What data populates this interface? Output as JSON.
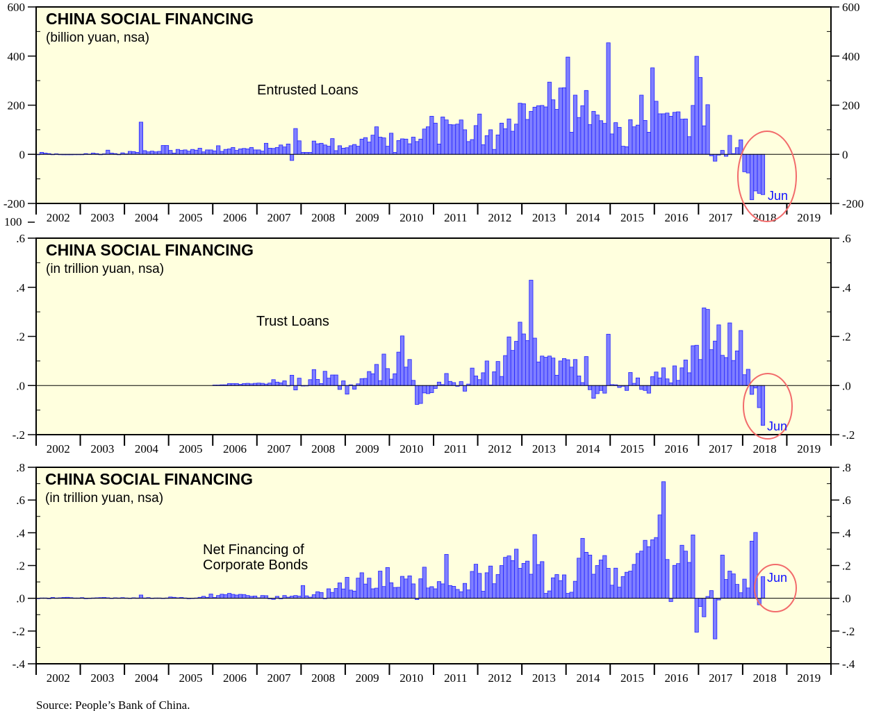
{
  "source": "Source: People’s Bank of China.",
  "stray_axis_label": "100",
  "colors": {
    "background": "#ffffde",
    "bar_fill": "#7f7fff",
    "bar_stroke": "#2222ff",
    "annotation_circle": "#f26b6b",
    "annotation_text": "#1010ff"
  },
  "chart_data": [
    {
      "type": "bar",
      "title": "CHINA SOCIAL FINANCING",
      "subtitle": "(billion yuan, nsa)",
      "series_label": [
        "Entrusted Loans"
      ],
      "frequency": "monthly",
      "start": "2002-01",
      "end": "2018-06",
      "annotation": "Jun",
      "ylim": [
        -200,
        600
      ],
      "yticks": [
        600,
        400,
        200,
        0,
        -200
      ],
      "ytick_labels": [
        "600",
        "400",
        "200",
        "0",
        "-200"
      ],
      "xtick_labels": [
        "2002",
        "2003",
        "2004",
        "2005",
        "2006",
        "2007",
        "2008",
        "2009",
        "2010",
        "2011",
        "2012",
        "2013",
        "2014",
        "2015",
        "2016",
        "2017",
        "2018",
        "2019"
      ],
      "grid": false,
      "values": [
        0,
        8,
        5,
        3,
        0,
        2,
        0,
        -2,
        -2,
        -2,
        0,
        -1,
        0,
        3,
        1,
        5,
        3,
        0,
        2,
        17,
        5,
        3,
        0,
        6,
        2,
        12,
        11,
        8,
        131,
        15,
        10,
        13,
        10,
        12,
        36,
        36,
        16,
        5,
        20,
        16,
        18,
        13,
        20,
        17,
        25,
        10,
        18,
        18,
        14,
        35,
        12,
        20,
        22,
        28,
        16,
        22,
        24,
        22,
        28,
        18,
        18,
        13,
        45,
        25,
        24,
        28,
        38,
        30,
        42,
        -25,
        105,
        55,
        8,
        8,
        8,
        54,
        43,
        45,
        38,
        33,
        64,
        15,
        35,
        25,
        27,
        35,
        40,
        33,
        62,
        68,
        50,
        78,
        112,
        70,
        67,
        33,
        86,
        8,
        56,
        63,
        62,
        43,
        70,
        52,
        62,
        103,
        112,
        155,
        127,
        42,
        152,
        140,
        121,
        120,
        123,
        140,
        100,
        52,
        60,
        117,
        164,
        39,
        76,
        100,
        20,
        79,
        127,
        104,
        144,
        94,
        123,
        208,
        206,
        142,
        175,
        192,
        198,
        199,
        193,
        294,
        222,
        183,
        270,
        271,
        396,
        90,
        241,
        150,
        198,
        260,
        121,
        175,
        160,
        137,
        126,
        454,
        83,
        129,
        110,
        33,
        31,
        141,
        112,
        119,
        241,
        138,
        90,
        352,
        216,
        165,
        165,
        168,
        155,
        171,
        173,
        143,
        144,
        72,
        199,
        399,
        313,
        116,
        202,
        -6,
        -28,
        -3,
        16,
        -8,
        77,
        3,
        27,
        59,
        -71,
        -76,
        -185,
        -149,
        -159,
        -164
      ]
    },
    {
      "type": "bar",
      "title": "CHINA SOCIAL FINANCING",
      "subtitle": "(in trillion yuan, nsa)",
      "series_label": [
        "Trust Loans"
      ],
      "frequency": "monthly",
      "start": "2002-01",
      "end": "2018-06",
      "annotation": "Jun",
      "ylim": [
        -0.2,
        0.6
      ],
      "yticks": [
        0.6,
        0.4,
        0.2,
        0.0,
        -0.2
      ],
      "ytick_labels": [
        ".6",
        ".4",
        ".2",
        ".0",
        "-.2"
      ],
      "xtick_labels": [
        "2002",
        "2003",
        "2004",
        "2005",
        "2006",
        "2007",
        "2008",
        "2009",
        "2010",
        "2011",
        "2012",
        "2013",
        "2014",
        "2015",
        "2016",
        "2017",
        "2018",
        "2019"
      ],
      "grid": false,
      "values": [
        null,
        null,
        null,
        null,
        null,
        null,
        null,
        null,
        null,
        null,
        null,
        null,
        null,
        null,
        null,
        null,
        null,
        null,
        null,
        null,
        null,
        null,
        null,
        null,
        null,
        null,
        null,
        null,
        null,
        null,
        null,
        null,
        null,
        null,
        null,
        null,
        null,
        null,
        null,
        null,
        null,
        null,
        null,
        null,
        null,
        null,
        null,
        null,
        0.002,
        0.002,
        0.003,
        0.003,
        0.008,
        0.008,
        0.008,
        0.005,
        0.008,
        0.009,
        0.007,
        0.009,
        0.01,
        0.009,
        0.006,
        0.01,
        0.024,
        0.014,
        0.011,
        0.019,
        0,
        0.042,
        -0.018,
        0.03,
        -0.002,
        0,
        0.024,
        0.065,
        0.025,
        0.008,
        0.058,
        0.03,
        0.043,
        0.043,
        -0.016,
        0.019,
        -0.035,
        0.003,
        -0.015,
        0.007,
        0.028,
        0.029,
        0.057,
        0.048,
        0.086,
        0.02,
        0.128,
        0.069,
        0.026,
        0.048,
        0.136,
        0.202,
        0.075,
        0.106,
        0.021,
        -0.077,
        -0.073,
        -0.03,
        -0.033,
        -0.029,
        -0.012,
        0.014,
        0.004,
        0.049,
        0.017,
        0.012,
        -0.003,
        0.016,
        -0.023,
        0.006,
        0.071,
        0.039,
        0.024,
        0.052,
        0.1,
        0.002,
        0.056,
        0.098,
        0.037,
        0.122,
        0.198,
        0.143,
        0.18,
        0.258,
        0.21,
        0.183,
        0.429,
        0.193,
        0.096,
        0.12,
        0.115,
        0.12,
        0.112,
        0.042,
        0.1,
        0.11,
        0.105,
        0.075,
        0.106,
        0.039,
        0.012,
        0.118,
        -0.017,
        -0.052,
        -0.033,
        -0.02,
        -0.031,
        0.209,
        0.004,
        0.003,
        -0.008,
        -0.003,
        -0.02,
        0.053,
        0.009,
        0.031,
        -0.016,
        -0.02,
        -0.031,
        0.036,
        0.055,
        0.031,
        0.072,
        0.027,
        0.011,
        0.08,
        0.021,
        0.072,
        0.104,
        0.052,
        0.162,
        0.164,
        0.106,
        0.316,
        0.31,
        0.146,
        0.181,
        0.247,
        0.123,
        0.114,
        0.255,
        0.102,
        0.141,
        0.224,
        0.044,
        0.066,
        -0.036,
        -0.01,
        -0.09,
        -0.162
      ]
    },
    {
      "type": "bar",
      "title": "CHINA SOCIAL FINANCING",
      "subtitle": "(in trillion yuan, nsa)",
      "series_label": [
        "Net Financing of",
        "Corporate Bonds"
      ],
      "frequency": "monthly",
      "start": "2002-01",
      "end": "2018-06",
      "annotation": "Jun",
      "ylim": [
        -0.4,
        0.8
      ],
      "yticks": [
        0.8,
        0.6,
        0.4,
        0.2,
        0.0,
        -0.2,
        -0.4
      ],
      "ytick_labels": [
        ".8",
        ".6",
        ".4",
        ".2",
        ".0",
        "-.2",
        "-.4"
      ],
      "xtick_labels": [
        "2002",
        "2003",
        "2004",
        "2005",
        "2006",
        "2007",
        "2008",
        "2009",
        "2010",
        "2011",
        "2012",
        "2013",
        "2014",
        "2015",
        "2016",
        "2017",
        "2018",
        "2019"
      ],
      "grid": false,
      "values": [
        0,
        0.002,
        0.002,
        0,
        0.005,
        0.002,
        0.003,
        0.005,
        0.006,
        0.004,
        0.002,
        0.002,
        0.004,
        0,
        0.001,
        0.002,
        0.003,
        0.004,
        0.005,
        0.003,
        0.001,
        0.003,
        0.002,
        0.004,
        0.002,
        0.001,
        0.003,
        0.002,
        0.02,
        0.002,
        0.004,
        0.001,
        0.002,
        0.002,
        0.001,
        0.002,
        0.008,
        0.006,
        0.003,
        0.005,
        0.002,
        0,
        0.001,
        0.002,
        0.006,
        0.012,
        0.006,
        0.026,
        0.005,
        0.017,
        0.025,
        0.022,
        0.03,
        0.024,
        0.02,
        0.024,
        0.023,
        0.017,
        0.012,
        0.014,
        0.003,
        0.017,
        0.016,
        -0.003,
        -0.007,
        0.012,
        -0.003,
        0.017,
        0.007,
        0.013,
        0.017,
        0.013,
        0.078,
        0.015,
        0.007,
        0.022,
        0.04,
        0.035,
        0,
        0.058,
        0.036,
        0.06,
        0.094,
        0.057,
        0.128,
        0.05,
        0.044,
        0.123,
        0.156,
        0.087,
        0.123,
        0.058,
        0.062,
        0.166,
        0.072,
        0.188,
        0.095,
        0.066,
        0.067,
        0.134,
        0.118,
        0.137,
        0.088,
        -0.008,
        0.119,
        0.19,
        0.063,
        0.071,
        0.058,
        0.102,
        0.088,
        0.268,
        0.078,
        0.073,
        0.054,
        0.04,
        0.091,
        0.051,
        0.164,
        0.208,
        0.152,
        0.043,
        0.156,
        0.197,
        0.089,
        0.145,
        0.2,
        0.25,
        0.259,
        0.23,
        0.3,
        0.183,
        0.213,
        0.227,
        0.147,
        0.389,
        0.206,
        0.224,
        0.03,
        0.045,
        0.125,
        0.145,
        0.108,
        0.143,
        0.03,
        0.037,
        0.104,
        0.245,
        0.366,
        0.281,
        0.264,
        0.147,
        0.2,
        0.234,
        0.261,
        0.183,
        0.08,
        0.184,
        0.068,
        0.133,
        0.159,
        0.166,
        0.207,
        0.274,
        0.288,
        0.354,
        0.315,
        0.357,
        0.371,
        0.509,
        0.712,
        0.237,
        -0.02,
        0.201,
        0.212,
        0.324,
        0.288,
        0.219,
        0.387,
        -0.207,
        -0.05,
        -0.113,
        0.011,
        0.047,
        -0.248,
        -0.01,
        0.264,
        0.115,
        0.166,
        0.149,
        0.085,
        0.034,
        0.117,
        0.063,
        0.349,
        0.402,
        -0.04,
        0.132
      ]
    }
  ]
}
